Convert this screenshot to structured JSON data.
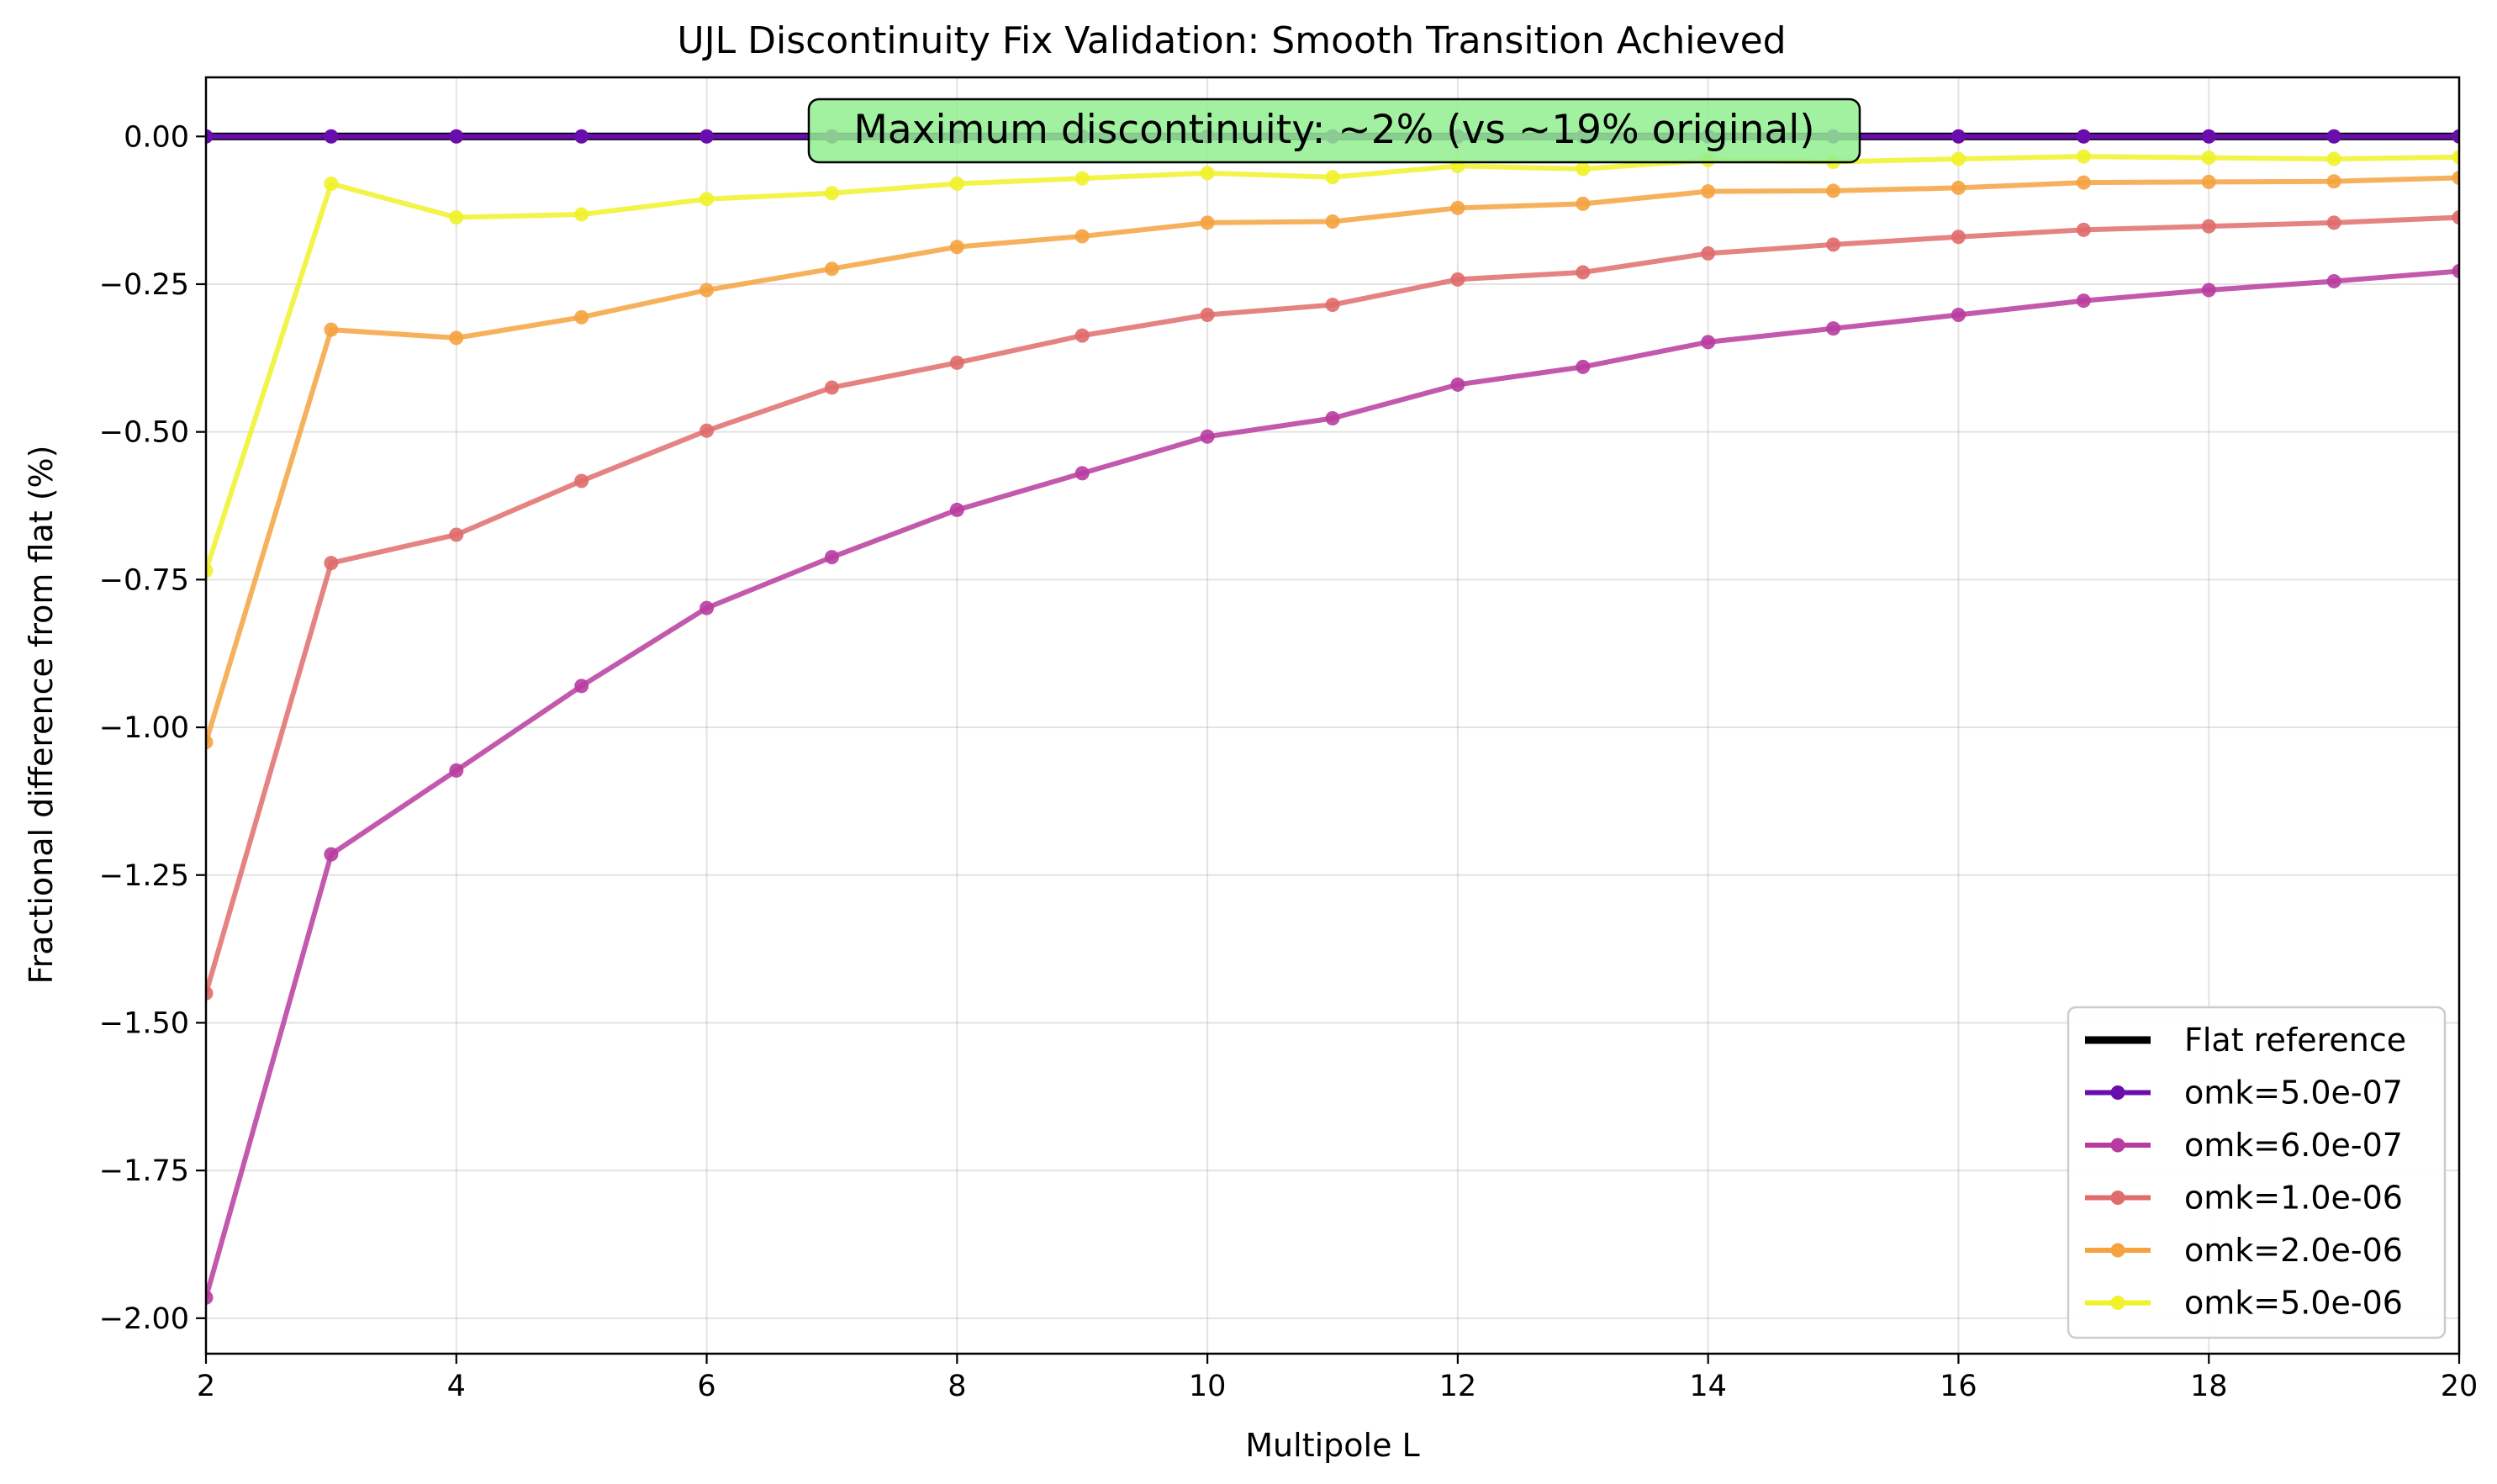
{
  "chart_data": {
    "type": "line",
    "title": "UJL Discontinuity Fix Validation: Smooth Transition Achieved",
    "xlabel": "Multipole L",
    "ylabel": "Fractional difference from flat (%)",
    "xlim": [
      2,
      20
    ],
    "ylim": [
      -2.06,
      0.1
    ],
    "x": [
      2,
      3,
      4,
      5,
      6,
      7,
      8,
      9,
      10,
      11,
      12,
      13,
      14,
      15,
      16,
      17,
      18,
      19,
      20
    ],
    "xticks": [
      2,
      4,
      6,
      8,
      10,
      12,
      14,
      16,
      18,
      20
    ],
    "yticks": [
      0.0,
      -0.25,
      -0.5,
      -0.75,
      -1.0,
      -1.25,
      -1.5,
      -1.75,
      -2.0
    ],
    "xtick_labels": [
      "2",
      "4",
      "6",
      "8",
      "10",
      "12",
      "14",
      "16",
      "18",
      "20"
    ],
    "ytick_labels": [
      "0.00",
      "−0.25",
      "−0.50",
      "−0.75",
      "−1.00",
      "−1.25",
      "−1.50",
      "−1.75",
      "−2.00"
    ],
    "grid": true,
    "legend_position": "bottom-right",
    "annotation": "Maximum discontinuity: ~2% (vs ~19% original)",
    "annotation_color": "#90ee90",
    "reference": {
      "name": "Flat reference",
      "value": 0.0,
      "color": "#000000"
    },
    "series": [
      {
        "name": "omk=5.0e-07",
        "color": "#6a0dad",
        "values": [
          0,
          0,
          0,
          0,
          0,
          0,
          0,
          0,
          0,
          0,
          0,
          0,
          0,
          0,
          0,
          0,
          0,
          0,
          0
        ]
      },
      {
        "name": "omk=6.0e-07",
        "color": "#b83c9f",
        "values": [
          -1.965,
          -1.215,
          -1.073,
          -0.93,
          -0.798,
          -0.712,
          -0.632,
          -0.57,
          -0.508,
          -0.477,
          -0.42,
          -0.39,
          -0.348,
          -0.325,
          -0.302,
          -0.278,
          -0.26,
          -0.245,
          -0.228
        ]
      },
      {
        "name": "omk=1.0e-06",
        "color": "#e06c6c",
        "values": [
          -1.45,
          -0.722,
          -0.674,
          -0.583,
          -0.498,
          -0.425,
          -0.383,
          -0.337,
          -0.302,
          -0.285,
          -0.242,
          -0.23,
          -0.198,
          -0.183,
          -0.17,
          -0.158,
          -0.152,
          -0.146,
          -0.137
        ]
      },
      {
        "name": "omk=2.0e-06",
        "color": "#f5a340",
        "values": [
          -1.025,
          -0.327,
          -0.341,
          -0.306,
          -0.26,
          -0.224,
          -0.187,
          -0.169,
          -0.146,
          -0.144,
          -0.121,
          -0.114,
          -0.093,
          -0.092,
          -0.087,
          -0.078,
          -0.077,
          -0.076,
          -0.07
        ]
      },
      {
        "name": "omk=5.0e-06",
        "color": "#f0f22a",
        "values": [
          -0.735,
          -0.08,
          -0.137,
          -0.132,
          -0.106,
          -0.096,
          -0.08,
          -0.071,
          -0.062,
          -0.069,
          -0.05,
          -0.055,
          -0.04,
          -0.043,
          -0.038,
          -0.034,
          -0.036,
          -0.038,
          -0.035
        ]
      }
    ]
  }
}
